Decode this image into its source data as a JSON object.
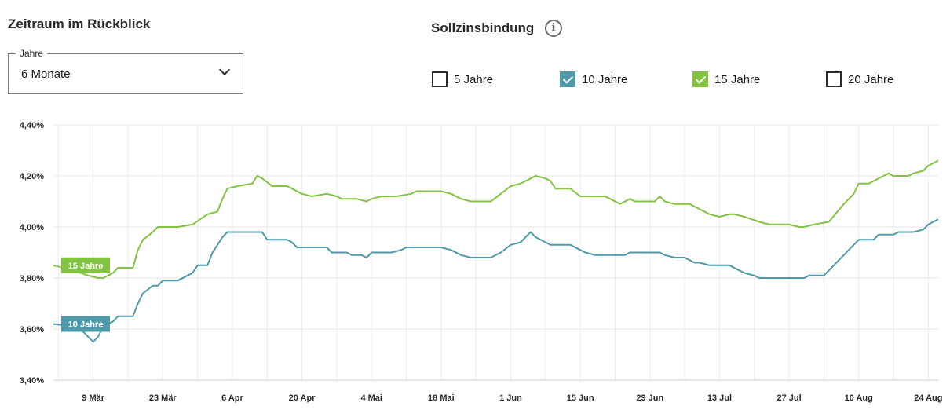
{
  "header": {
    "left_title": "Zeitraum im Rückblick",
    "right_title": "Sollzinsbindung",
    "info_symbol": "i"
  },
  "period_select": {
    "label": "Jahre",
    "value": "6 Monate"
  },
  "filters": [
    {
      "label": "5 Jahre",
      "checked": false,
      "color": "#ffffff"
    },
    {
      "label": "10 Jahre",
      "checked": true,
      "color": "#4f9aaa"
    },
    {
      "label": "15 Jahre",
      "checked": true,
      "color": "#82c341"
    },
    {
      "label": "20 Jahre",
      "checked": false,
      "color": "#ffffff"
    }
  ],
  "chart_data": {
    "type": "line",
    "x_ticks": [
      "9 Mär",
      "23 Mär",
      "6 Apr",
      "20 Apr",
      "4 Mai",
      "18 Mai",
      "1 Jun",
      "15 Jun",
      "29 Jun",
      "13 Jul",
      "27 Jul",
      "10 Aug",
      "24 Aug"
    ],
    "y_ticks": [
      "4,40%",
      "4,20%",
      "4,00%",
      "3,80%",
      "3,60%",
      "3,40%"
    ],
    "ylim": [
      3.4,
      4.4
    ],
    "x_start": "2024-03-01",
    "x_end": "2024-08-26",
    "grid": true,
    "series": [
      {
        "name": "15 Jahre",
        "color": "#82c341",
        "points": [
          [
            "2024-03-01",
            3.85
          ],
          [
            "2024-03-05",
            3.83
          ],
          [
            "2024-03-08",
            3.81
          ],
          [
            "2024-03-10",
            3.8
          ],
          [
            "2024-03-11",
            3.8
          ],
          [
            "2024-03-13",
            3.82
          ],
          [
            "2024-03-14",
            3.84
          ],
          [
            "2024-03-17",
            3.84
          ],
          [
            "2024-03-18",
            3.91
          ],
          [
            "2024-03-19",
            3.95
          ],
          [
            "2024-03-21",
            3.98
          ],
          [
            "2024-03-22",
            4.0
          ],
          [
            "2024-03-26",
            4.0
          ],
          [
            "2024-03-29",
            4.01
          ],
          [
            "2024-04-01",
            4.05
          ],
          [
            "2024-04-03",
            4.06
          ],
          [
            "2024-04-04",
            4.11
          ],
          [
            "2024-04-05",
            4.15
          ],
          [
            "2024-04-07",
            4.16
          ],
          [
            "2024-04-10",
            4.17
          ],
          [
            "2024-04-11",
            4.2
          ],
          [
            "2024-04-12",
            4.19
          ],
          [
            "2024-04-14",
            4.16
          ],
          [
            "2024-04-17",
            4.16
          ],
          [
            "2024-04-19",
            4.14
          ],
          [
            "2024-04-20",
            4.13
          ],
          [
            "2024-04-22",
            4.12
          ],
          [
            "2024-04-25",
            4.13
          ],
          [
            "2024-04-27",
            4.12
          ],
          [
            "2024-04-28",
            4.11
          ],
          [
            "2024-05-01",
            4.11
          ],
          [
            "2024-05-03",
            4.1
          ],
          [
            "2024-05-04",
            4.11
          ],
          [
            "2024-05-06",
            4.12
          ],
          [
            "2024-05-09",
            4.12
          ],
          [
            "2024-05-12",
            4.13
          ],
          [
            "2024-05-13",
            4.14
          ],
          [
            "2024-05-18",
            4.14
          ],
          [
            "2024-05-20",
            4.13
          ],
          [
            "2024-05-22",
            4.11
          ],
          [
            "2024-05-24",
            4.1
          ],
          [
            "2024-05-28",
            4.1
          ],
          [
            "2024-05-30",
            4.13
          ],
          [
            "2024-06-01",
            4.16
          ],
          [
            "2024-06-03",
            4.17
          ],
          [
            "2024-06-05",
            4.19
          ],
          [
            "2024-06-06",
            4.2
          ],
          [
            "2024-06-08",
            4.19
          ],
          [
            "2024-06-09",
            4.18
          ],
          [
            "2024-06-10",
            4.15
          ],
          [
            "2024-06-13",
            4.15
          ],
          [
            "2024-06-15",
            4.12
          ],
          [
            "2024-06-20",
            4.12
          ],
          [
            "2024-06-22",
            4.1
          ],
          [
            "2024-06-23",
            4.09
          ],
          [
            "2024-06-25",
            4.11
          ],
          [
            "2024-06-26",
            4.1
          ],
          [
            "2024-06-30",
            4.1
          ],
          [
            "2024-07-01",
            4.12
          ],
          [
            "2024-07-02",
            4.1
          ],
          [
            "2024-07-04",
            4.09
          ],
          [
            "2024-07-07",
            4.09
          ],
          [
            "2024-07-09",
            4.07
          ],
          [
            "2024-07-11",
            4.05
          ],
          [
            "2024-07-13",
            4.04
          ],
          [
            "2024-07-15",
            4.05
          ],
          [
            "2024-07-16",
            4.05
          ],
          [
            "2024-07-18",
            4.04
          ],
          [
            "2024-07-21",
            4.02
          ],
          [
            "2024-07-23",
            4.01
          ],
          [
            "2024-07-27",
            4.01
          ],
          [
            "2024-07-29",
            4.0
          ],
          [
            "2024-07-30",
            4.0
          ],
          [
            "2024-08-01",
            4.01
          ],
          [
            "2024-08-04",
            4.02
          ],
          [
            "2024-08-07",
            4.09
          ],
          [
            "2024-08-09",
            4.13
          ],
          [
            "2024-08-10",
            4.17
          ],
          [
            "2024-08-12",
            4.17
          ],
          [
            "2024-08-14",
            4.19
          ],
          [
            "2024-08-15",
            4.2
          ],
          [
            "2024-08-16",
            4.21
          ],
          [
            "2024-08-17",
            4.2
          ],
          [
            "2024-08-20",
            4.2
          ],
          [
            "2024-08-21",
            4.21
          ],
          [
            "2024-08-23",
            4.22
          ],
          [
            "2024-08-24",
            4.24
          ],
          [
            "2024-08-26",
            4.26
          ]
        ]
      },
      {
        "name": "10 Jahre",
        "color": "#4f9aaa",
        "points": [
          [
            "2024-03-01",
            3.62
          ],
          [
            "2024-03-05",
            3.61
          ],
          [
            "2024-03-07",
            3.59
          ],
          [
            "2024-03-08",
            3.57
          ],
          [
            "2024-03-09",
            3.55
          ],
          [
            "2024-03-10",
            3.57
          ],
          [
            "2024-03-11",
            3.61
          ],
          [
            "2024-03-13",
            3.63
          ],
          [
            "2024-03-14",
            3.65
          ],
          [
            "2024-03-17",
            3.65
          ],
          [
            "2024-03-18",
            3.7
          ],
          [
            "2024-03-19",
            3.74
          ],
          [
            "2024-03-21",
            3.77
          ],
          [
            "2024-03-22",
            3.77
          ],
          [
            "2024-03-23",
            3.79
          ],
          [
            "2024-03-26",
            3.79
          ],
          [
            "2024-03-28",
            3.81
          ],
          [
            "2024-03-29",
            3.82
          ],
          [
            "2024-03-30",
            3.85
          ],
          [
            "2024-04-01",
            3.85
          ],
          [
            "2024-04-02",
            3.9
          ],
          [
            "2024-04-03",
            3.93
          ],
          [
            "2024-04-04",
            3.96
          ],
          [
            "2024-04-05",
            3.98
          ],
          [
            "2024-04-12",
            3.98
          ],
          [
            "2024-04-13",
            3.95
          ],
          [
            "2024-04-15",
            3.95
          ],
          [
            "2024-04-17",
            3.95
          ],
          [
            "2024-04-18",
            3.94
          ],
          [
            "2024-04-19",
            3.92
          ],
          [
            "2024-04-25",
            3.92
          ],
          [
            "2024-04-26",
            3.9
          ],
          [
            "2024-04-29",
            3.9
          ],
          [
            "2024-04-30",
            3.89
          ],
          [
            "2024-05-02",
            3.89
          ],
          [
            "2024-05-03",
            3.88
          ],
          [
            "2024-05-04",
            3.9
          ],
          [
            "2024-05-08",
            3.9
          ],
          [
            "2024-05-10",
            3.91
          ],
          [
            "2024-05-11",
            3.92
          ],
          [
            "2024-05-14",
            3.92
          ],
          [
            "2024-05-18",
            3.92
          ],
          [
            "2024-05-20",
            3.91
          ],
          [
            "2024-05-22",
            3.89
          ],
          [
            "2024-05-24",
            3.88
          ],
          [
            "2024-05-28",
            3.88
          ],
          [
            "2024-05-30",
            3.9
          ],
          [
            "2024-06-01",
            3.93
          ],
          [
            "2024-06-03",
            3.94
          ],
          [
            "2024-06-04",
            3.96
          ],
          [
            "2024-06-05",
            3.98
          ],
          [
            "2024-06-06",
            3.96
          ],
          [
            "2024-06-08",
            3.94
          ],
          [
            "2024-06-09",
            3.93
          ],
          [
            "2024-06-13",
            3.93
          ],
          [
            "2024-06-15",
            3.91
          ],
          [
            "2024-06-16",
            3.9
          ],
          [
            "2024-06-18",
            3.89
          ],
          [
            "2024-06-21",
            3.89
          ],
          [
            "2024-06-24",
            3.89
          ],
          [
            "2024-06-25",
            3.9
          ],
          [
            "2024-07-01",
            3.9
          ],
          [
            "2024-07-02",
            3.89
          ],
          [
            "2024-07-04",
            3.88
          ],
          [
            "2024-07-06",
            3.88
          ],
          [
            "2024-07-08",
            3.86
          ],
          [
            "2024-07-09",
            3.86
          ],
          [
            "2024-07-11",
            3.85
          ],
          [
            "2024-07-15",
            3.85
          ],
          [
            "2024-07-17",
            3.83
          ],
          [
            "2024-07-18",
            3.82
          ],
          [
            "2024-07-20",
            3.81
          ],
          [
            "2024-07-21",
            3.8
          ],
          [
            "2024-07-26",
            3.8
          ],
          [
            "2024-07-30",
            3.8
          ],
          [
            "2024-07-31",
            3.81
          ],
          [
            "2024-08-03",
            3.81
          ],
          [
            "2024-08-05",
            3.85
          ],
          [
            "2024-08-07",
            3.89
          ],
          [
            "2024-08-09",
            3.93
          ],
          [
            "2024-08-10",
            3.95
          ],
          [
            "2024-08-13",
            3.95
          ],
          [
            "2024-08-14",
            3.97
          ],
          [
            "2024-08-17",
            3.97
          ],
          [
            "2024-08-18",
            3.98
          ],
          [
            "2024-08-21",
            3.98
          ],
          [
            "2024-08-23",
            3.99
          ],
          [
            "2024-08-24",
            4.01
          ],
          [
            "2024-08-25",
            4.02
          ],
          [
            "2024-08-26",
            4.03
          ]
        ]
      }
    ]
  }
}
